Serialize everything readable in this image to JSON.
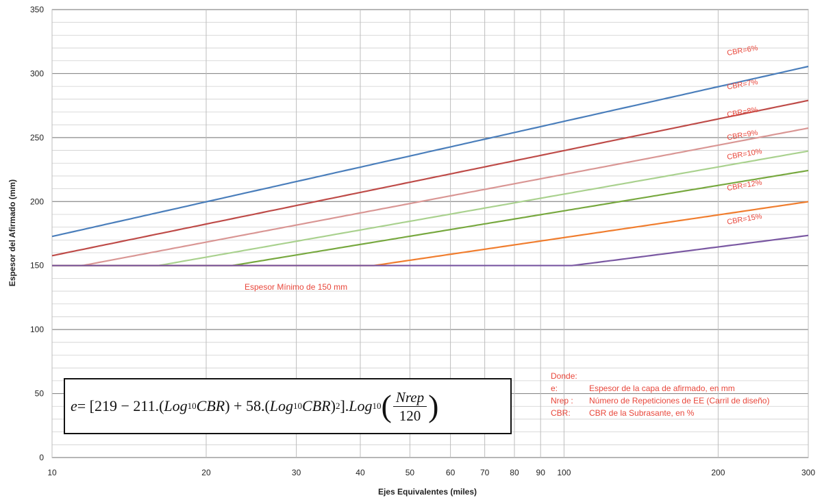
{
  "chart_data": {
    "type": "line",
    "xlabel": "Ejes Equivalentes (miles)",
    "ylabel": "Espesor del Afirmado (mm)",
    "x_scale": "log",
    "xlim": [
      10,
      300
    ],
    "ylim": [
      0,
      350
    ],
    "x_ticks": [
      "10",
      "20",
      "30",
      "40",
      "50",
      "60",
      "70",
      "80",
      "90",
      "100",
      "200",
      "300"
    ],
    "y_ticks": [
      "0",
      "50",
      "100",
      "150",
      "200",
      "250",
      "300",
      "350"
    ],
    "grid": true,
    "x_unit": "miles",
    "y_unit": "mm",
    "minimum_thickness": 150,
    "minimum_label": "Espesor Mínimo de 150 mm",
    "series": [
      {
        "name": "CBR=6%",
        "cbr": 6,
        "color": "#4a7ebb"
      },
      {
        "name": "CBR=7%",
        "cbr": 7,
        "color": "#be4b48"
      },
      {
        "name": "CBR=8%",
        "cbr": 8,
        "color": "#d99694"
      },
      {
        "name": "CBR=9%",
        "cbr": 9,
        "color": "#a9d18e"
      },
      {
        "name": "CBR=10%",
        "cbr": 10,
        "color": "#77a83f"
      },
      {
        "name": "CBR=12%",
        "cbr": 12,
        "color": "#f07d2e"
      },
      {
        "name": "CBR=15%",
        "cbr": 15,
        "color": "#7a58a2"
      }
    ],
    "formula": {
      "lhs": "e",
      "part1": "= [219 − 211.(",
      "log": "Log",
      "sub": "10",
      "cbr": "CBR",
      "part2": ") + 58.(",
      "part3": ")",
      "sup": "2",
      "part4": "].",
      "num": "Nrep",
      "den": "120"
    },
    "legend_notes": {
      "title": "Donde:",
      "rows": [
        {
          "key": "e:",
          "value": "Espesor de la capa de afirmado, en mm"
        },
        {
          "key": "Nrep :",
          "value": "Número de Repeticiones de EE (Carril de diseño)"
        },
        {
          "key": "CBR:",
          "value": "CBR de la Subrasante, en %"
        }
      ]
    }
  }
}
